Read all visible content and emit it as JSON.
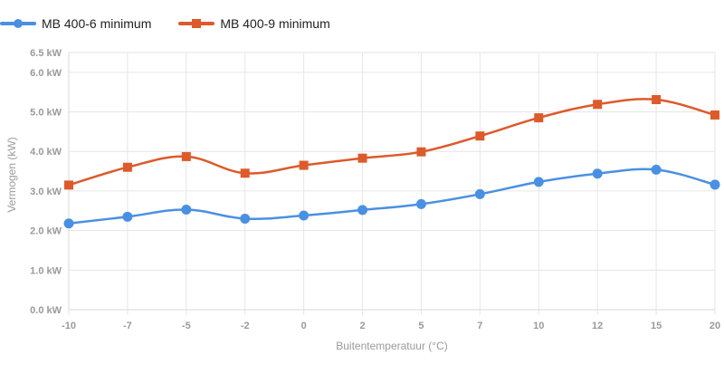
{
  "chart_data": {
    "type": "line",
    "categories": [
      "-10",
      "-7",
      "-5",
      "-2",
      "0",
      "2",
      "5",
      "7",
      "10",
      "12",
      "15",
      "20"
    ],
    "series": [
      {
        "name": "MB 400-6 minimum",
        "marker": "circle",
        "color": "#4a90e2",
        "values": [
          2.18,
          2.35,
          2.53,
          2.3,
          2.38,
          2.52,
          2.67,
          2.92,
          3.23,
          3.44,
          3.54,
          3.16
        ]
      },
      {
        "name": "MB 400-9 minimum",
        "marker": "square",
        "color": "#dd5a2b",
        "values": [
          3.15,
          3.6,
          3.87,
          3.45,
          3.65,
          3.83,
          3.99,
          4.39,
          4.85,
          5.19,
          5.31,
          4.92
        ]
      }
    ],
    "xlabel": "Buitentemperatuur (°C)",
    "ylabel": "Vermogen (kW)",
    "ylim": [
      0,
      6.5
    ],
    "yticks": [
      {
        "value": 0,
        "label": "0.0 kW"
      },
      {
        "value": 1,
        "label": "1.0 kW"
      },
      {
        "value": 2,
        "label": "2.0 kW"
      },
      {
        "value": 3,
        "label": "3.0 kW"
      },
      {
        "value": 4,
        "label": "4.0 kW"
      },
      {
        "value": 5,
        "label": "5.0 kW"
      },
      {
        "value": 6,
        "label": "6.0 kW"
      },
      {
        "value": 6.5,
        "label": "6.5 kW"
      }
    ],
    "grid": true,
    "legend": "top-left"
  }
}
